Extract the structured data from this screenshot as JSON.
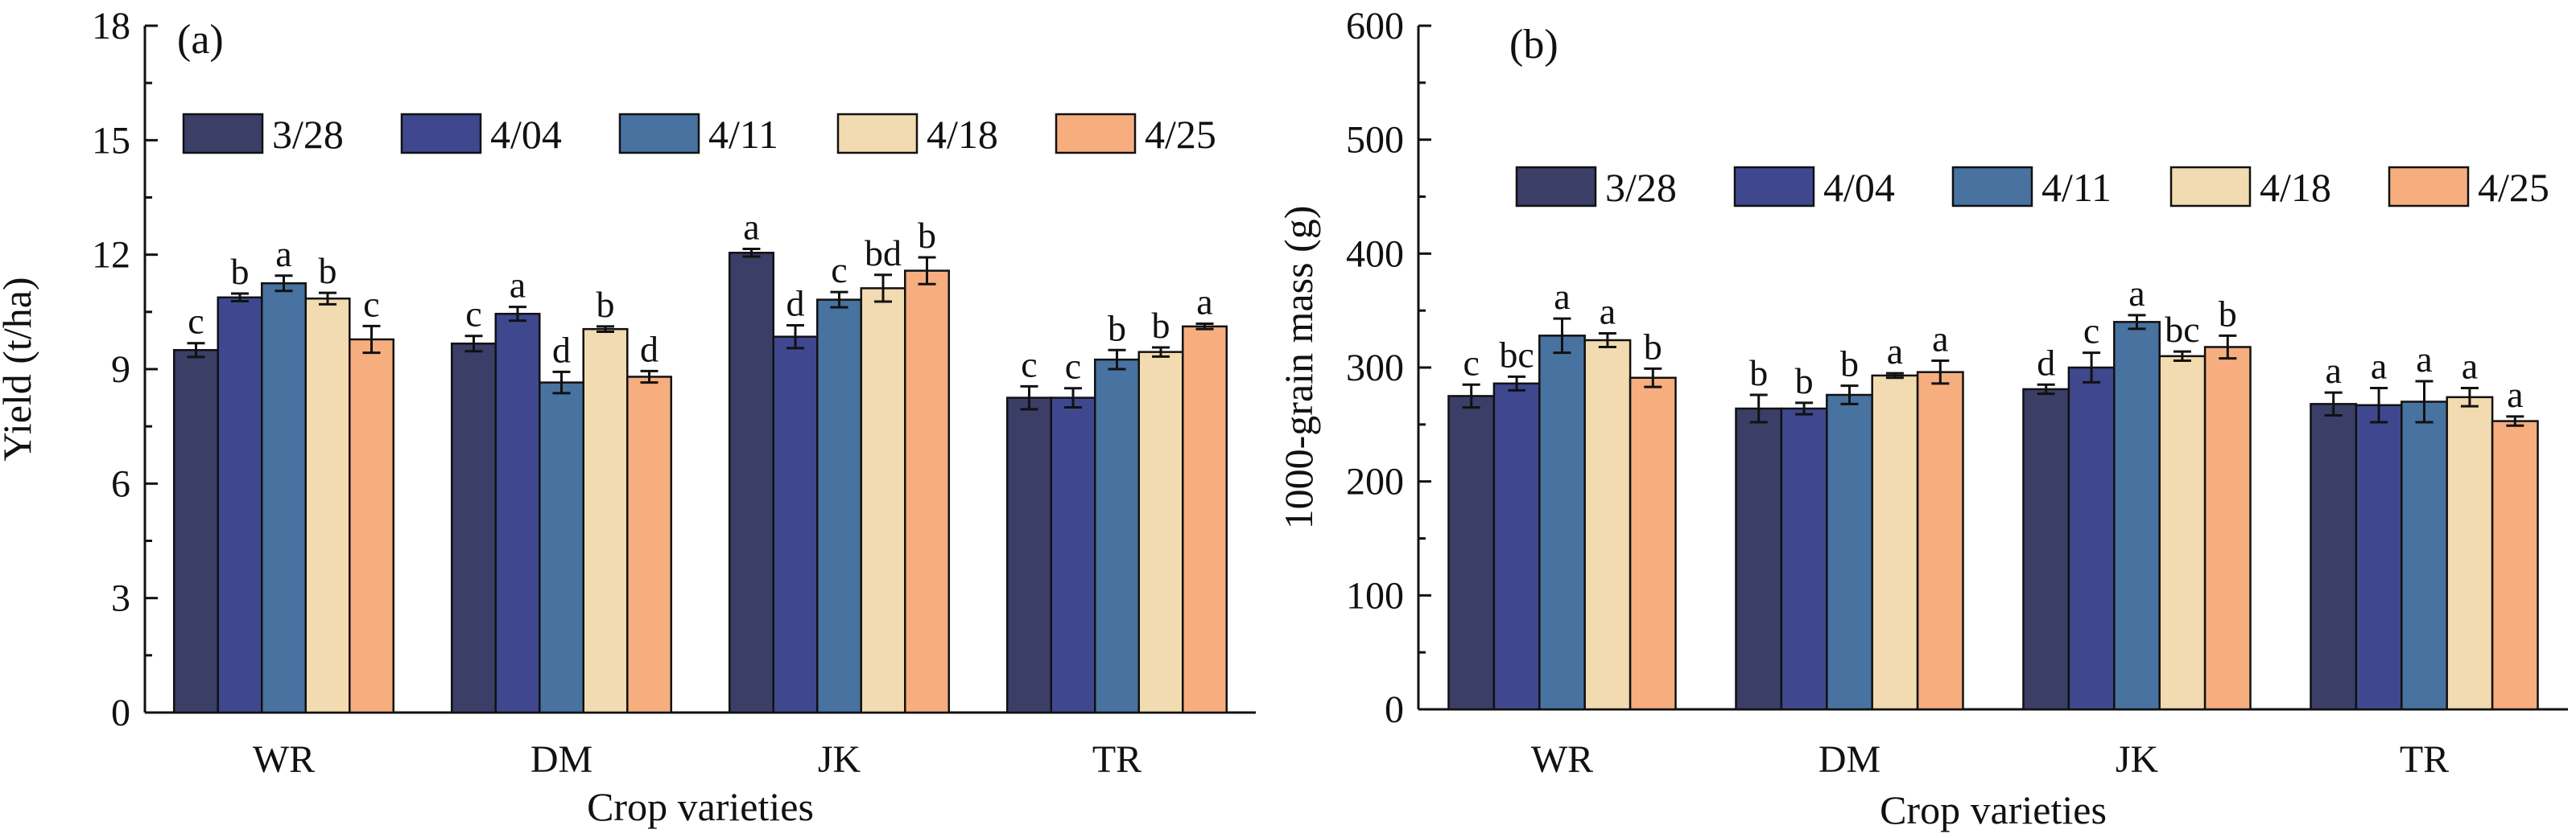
{
  "colors": {
    "3/28": "#3b3e66",
    "4/04": "#3f488f",
    "4/11": "#4872a0",
    "4/18": "#f2dbb0",
    "4/25": "#f6ae7f"
  },
  "chart_data": [
    {
      "type": "bar",
      "panel_label": "(a)",
      "xlabel": "Crop varieties",
      "ylabel": "Yield (t/ha)",
      "ylim": [
        0,
        18
      ],
      "yticks": [
        "0",
        "3",
        "6",
        "9",
        "12",
        "15",
        "18"
      ],
      "categories": [
        "WR",
        "DM",
        "JK",
        "TR"
      ],
      "legend_position": "top-left",
      "series": [
        {
          "name": "3/28",
          "values": [
            9.5,
            9.67,
            12.05,
            8.25
          ],
          "errors": [
            0.18,
            0.2,
            0.1,
            0.3
          ],
          "labels": [
            "c",
            "c",
            "a",
            "c"
          ]
        },
        {
          "name": "4/04",
          "values": [
            10.88,
            10.45,
            9.85,
            8.25
          ],
          "errors": [
            0.1,
            0.18,
            0.3,
            0.25
          ],
          "labels": [
            "b",
            "a",
            "d",
            "c"
          ]
        },
        {
          "name": "4/11",
          "values": [
            11.25,
            8.65,
            10.82,
            9.25
          ],
          "errors": [
            0.2,
            0.28,
            0.2,
            0.25
          ],
          "labels": [
            "a",
            "d",
            "c",
            "b"
          ]
        },
        {
          "name": "4/18",
          "values": [
            10.85,
            10.05,
            11.12,
            9.45
          ],
          "errors": [
            0.15,
            0.07,
            0.35,
            0.12
          ],
          "labels": [
            "b",
            "b",
            "bd",
            "b"
          ]
        },
        {
          "name": "4/25",
          "values": [
            9.78,
            8.8,
            11.58,
            10.12
          ],
          "errors": [
            0.35,
            0.15,
            0.35,
            0.07
          ],
          "labels": [
            "c",
            "d",
            "b",
            "a"
          ]
        }
      ]
    },
    {
      "type": "bar",
      "panel_label": "(b)",
      "xlabel": "Crop varieties",
      "ylabel": "1000-grain mass (g)",
      "ylim": [
        0,
        600
      ],
      "yticks": [
        "0",
        "100",
        "200",
        "300",
        "400",
        "500",
        "600"
      ],
      "categories": [
        "WR",
        "DM",
        "JK",
        "TR"
      ],
      "legend_position": "top",
      "series": [
        {
          "name": "3/28",
          "values": [
            275,
            264,
            281,
            268
          ],
          "errors": [
            10,
            12,
            4,
            10
          ],
          "labels": [
            "c",
            "b",
            "d",
            "a"
          ]
        },
        {
          "name": "4/04",
          "values": [
            286,
            264,
            300,
            267
          ],
          "errors": [
            6,
            5,
            13,
            15
          ],
          "labels": [
            "bc",
            "b",
            "c",
            "a"
          ]
        },
        {
          "name": "4/11",
          "values": [
            328,
            276,
            340,
            270
          ],
          "errors": [
            15,
            8,
            6,
            18
          ],
          "labels": [
            "a",
            "b",
            "a",
            "a"
          ]
        },
        {
          "name": "4/18",
          "values": [
            324,
            293,
            310,
            274
          ],
          "errors": [
            6,
            2,
            4,
            8
          ],
          "labels": [
            "a",
            "a",
            "bc",
            "a"
          ]
        },
        {
          "name": "4/25",
          "values": [
            291,
            296,
            318,
            253
          ],
          "errors": [
            8,
            10,
            10,
            4
          ],
          "labels": [
            "b",
            "a",
            "b",
            "a"
          ]
        }
      ]
    }
  ]
}
